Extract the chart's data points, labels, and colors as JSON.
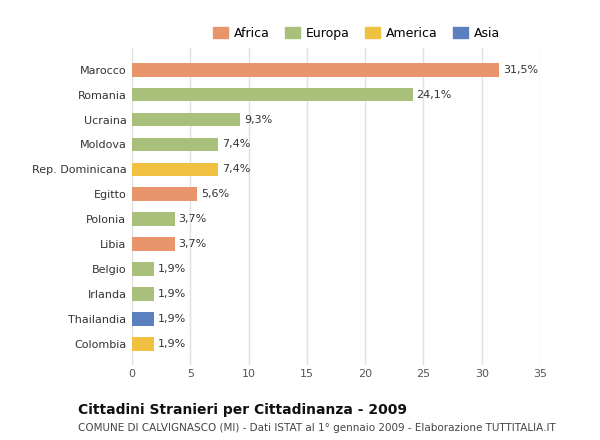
{
  "categories": [
    "Colombia",
    "Thailandia",
    "Irlanda",
    "Belgio",
    "Libia",
    "Polonia",
    "Egitto",
    "Rep. Dominicana",
    "Moldova",
    "Ucraina",
    "Romania",
    "Marocco"
  ],
  "values": [
    1.9,
    1.9,
    1.9,
    1.9,
    3.7,
    3.7,
    5.6,
    7.4,
    7.4,
    9.3,
    24.1,
    31.5
  ],
  "labels": [
    "1,9%",
    "1,9%",
    "1,9%",
    "1,9%",
    "3,7%",
    "3,7%",
    "5,6%",
    "7,4%",
    "7,4%",
    "9,3%",
    "24,1%",
    "31,5%"
  ],
  "bar_colors": [
    "#f0c040",
    "#5b80c0",
    "#a8c07a",
    "#a8c07a",
    "#e8956d",
    "#a8c07a",
    "#e8956d",
    "#f0c040",
    "#a8c07a",
    "#a8c07a",
    "#a8c07a",
    "#e8956d"
  ],
  "legend_labels": [
    "Africa",
    "Europa",
    "America",
    "Asia"
  ],
  "legend_colors": [
    "#e8956d",
    "#a8c07a",
    "#f0c040",
    "#5b80c0"
  ],
  "xlim": [
    0,
    35
  ],
  "xticks": [
    0,
    5,
    10,
    15,
    20,
    25,
    30,
    35
  ],
  "title": "Cittadini Stranieri per Cittadinanza - 2009",
  "subtitle": "COMUNE DI CALVIGNASCO (MI) - Dati ISTAT al 1° gennaio 2009 - Elaborazione TUTTITALIA.IT",
  "background_color": "#ffffff",
  "bar_height": 0.55,
  "grid_color": "#e0e0e0",
  "title_fontsize": 10,
  "subtitle_fontsize": 7.5,
  "label_fontsize": 8,
  "tick_fontsize": 8,
  "legend_fontsize": 9
}
